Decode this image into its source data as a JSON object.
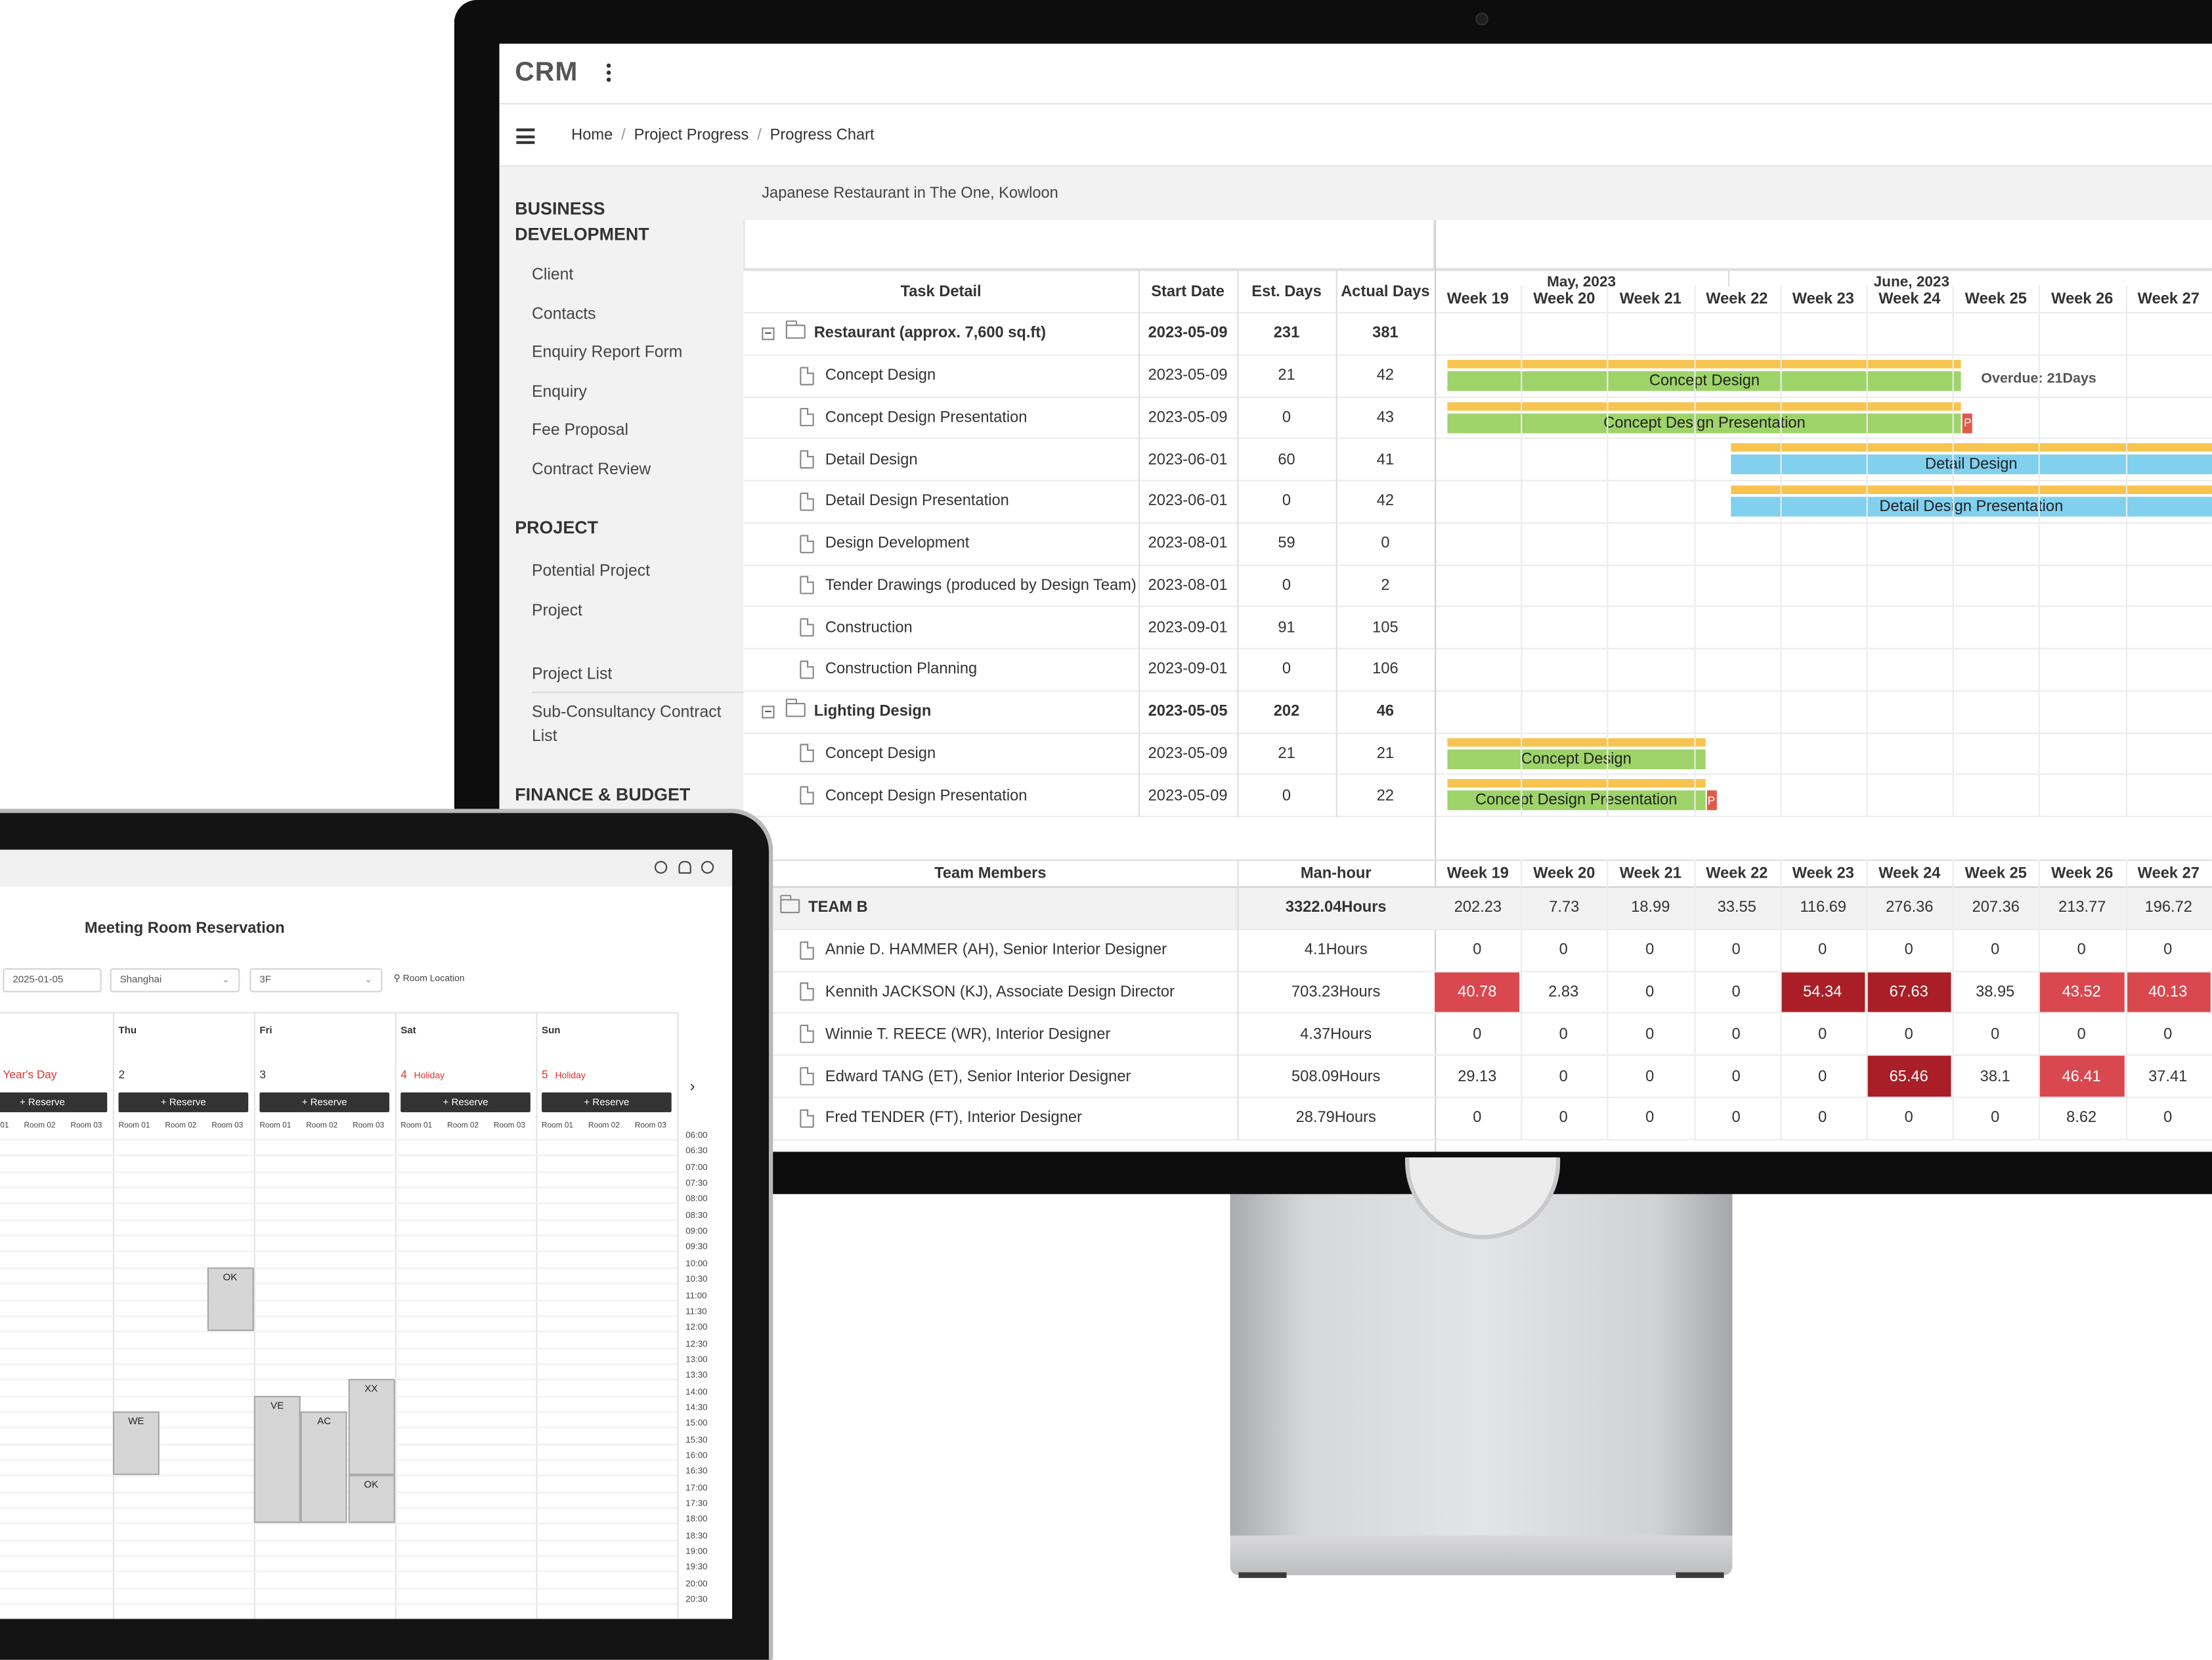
{
  "crm": {
    "logo": "CRM",
    "breadcrumb": [
      "Home",
      "Project Progress",
      "Progress Chart"
    ],
    "sidebar": {
      "sections": [
        {
          "title": "BUSINESS DEVELOPMENT",
          "items": [
            "Client",
            "Contacts",
            "Enquiry Report Form",
            "Enquiry",
            "Fee Proposal",
            "Contract Review"
          ]
        },
        {
          "title": "PROJECT",
          "items": [
            "Potential Project",
            "Project"
          ]
        },
        {
          "title": "",
          "items": [
            "Project List",
            "Sub-Consultancy Contract List"
          ]
        },
        {
          "title": "FINANCE & BUDGET",
          "items": []
        }
      ]
    },
    "project_title": "Japanese Restaurant in The One, Kowloon",
    "task_table": {
      "headers": {
        "task": "Task Detail",
        "start": "Start Date",
        "est": "Est. Days",
        "actual": "Actual Days"
      },
      "months": [
        "May, 2023",
        "June, 2023"
      ],
      "weeks": [
        "Week 19",
        "Week 20",
        "Week 21",
        "Week 22",
        "Week 23",
        "Week 24",
        "Week 25",
        "Week 26",
        "Week 27"
      ],
      "rows": [
        {
          "type": "group",
          "name": "Restaurant (approx. 7,600 sq.ft)",
          "start": "2023-05-09",
          "est": "231",
          "actual": "381"
        },
        {
          "type": "task",
          "name": "Concept Design",
          "start": "2023-05-09",
          "est": "21",
          "actual": "42",
          "bar": {
            "label": "Concept Design",
            "color": "#9ed36a",
            "from_week": 19.15,
            "to_week": 25.1
          },
          "note": "Overdue: 21Days"
        },
        {
          "type": "task",
          "name": "Concept Design Presentation",
          "start": "2023-05-09",
          "est": "0",
          "actual": "43",
          "bar": {
            "label": "Concept Design Presentation",
            "color": "#9ed36a",
            "from_week": 19.15,
            "to_week": 25.1
          },
          "flag": "P"
        },
        {
          "type": "task",
          "name": "Detail Design",
          "start": "2023-06-01",
          "est": "60",
          "actual": "41",
          "bar": {
            "label": "Detail Design",
            "color": "#80d0ee",
            "from_week": 22.43,
            "to_week": 28
          }
        },
        {
          "type": "task",
          "name": "Detail Design Presentation",
          "start": "2023-06-01",
          "est": "0",
          "actual": "42",
          "bar": {
            "label": "Detail Design Presentation",
            "color": "#80d0ee",
            "from_week": 22.43,
            "to_week": 28
          }
        },
        {
          "type": "task",
          "name": "Design Development",
          "start": "2023-08-01",
          "est": "59",
          "actual": "0"
        },
        {
          "type": "task",
          "name": "Tender Drawings (produced by Design Team)",
          "start": "2023-08-01",
          "est": "0",
          "actual": "2"
        },
        {
          "type": "task",
          "name": "Construction",
          "start": "2023-09-01",
          "est": "91",
          "actual": "105"
        },
        {
          "type": "task",
          "name": "Construction Planning",
          "start": "2023-09-01",
          "est": "0",
          "actual": "106"
        },
        {
          "type": "group",
          "name": "Lighting Design",
          "start": "2023-05-05",
          "est": "202",
          "actual": "46"
        },
        {
          "type": "task",
          "name": "Concept Design",
          "start": "2023-05-09",
          "est": "21",
          "actual": "21",
          "bar": {
            "label": "Concept Design",
            "color": "#9ed36a",
            "from_week": 19.15,
            "to_week": 22.13
          }
        },
        {
          "type": "task",
          "name": "Concept Design Presentation",
          "start": "2023-05-09",
          "est": "0",
          "actual": "22",
          "bar": {
            "label": "Concept Design Presentation",
            "color": "#9ed36a",
            "from_week": 19.15,
            "to_week": 22.13
          },
          "flag": "P"
        }
      ],
      "plan_color": "#f6c44f"
    },
    "team_table": {
      "headers": {
        "member": "Team Members",
        "hours": "Man-hour"
      },
      "weeks": [
        "Week 19",
        "Week 20",
        "Week 21",
        "Week 22",
        "Week 23",
        "Week 24",
        "Week 25",
        "Week 26",
        "Week 27"
      ],
      "team": {
        "name": "TEAM B",
        "hours": "3322.04Hours",
        "values": [
          "202.23",
          "7.73",
          "18.99",
          "33.55",
          "116.69",
          "276.36",
          "207.36",
          "213.77",
          "196.72"
        ]
      },
      "members": [
        {
          "name": "Annie D. HAMMER (AH), Senior Interior Designer",
          "hours": "4.1Hours",
          "values": [
            "0",
            "0",
            "0",
            "0",
            "0",
            "0",
            "0",
            "0",
            "0"
          ],
          "levels": [
            0,
            0,
            0,
            0,
            0,
            0,
            0,
            0,
            0
          ]
        },
        {
          "name": "Kennith JACKSON (KJ), Associate Design Director",
          "hours": "703.23Hours",
          "values": [
            "40.78",
            "2.83",
            "0",
            "0",
            "54.34",
            "67.63",
            "38.95",
            "43.52",
            "40.13"
          ],
          "levels": [
            1,
            0,
            0,
            0,
            2,
            2,
            0,
            1,
            1
          ]
        },
        {
          "name": "Winnie T. REECE (WR), Interior Designer",
          "hours": "4.37Hours",
          "values": [
            "0",
            "0",
            "0",
            "0",
            "0",
            "0",
            "0",
            "0",
            "0"
          ],
          "levels": [
            0,
            0,
            0,
            0,
            0,
            0,
            0,
            0,
            0
          ]
        },
        {
          "name": "Edward TANG (ET), Senior Interior Designer",
          "hours": "508.09Hours",
          "values": [
            "29.13",
            "0",
            "0",
            "0",
            "0",
            "65.46",
            "38.1",
            "46.41",
            "37.41"
          ],
          "levels": [
            0,
            0,
            0,
            0,
            0,
            2,
            0,
            1,
            0
          ]
        },
        {
          "name": "Fred TENDER (FT), Interior Designer",
          "hours": "28.79Hours",
          "values": [
            "0",
            "0",
            "0",
            "0",
            "0",
            "0",
            "0",
            "8.62",
            "0"
          ],
          "levels": [
            0,
            0,
            0,
            0,
            0,
            0,
            0,
            0,
            0
          ]
        }
      ],
      "heat_colors": {
        "1": "#d9484f",
        "2": "#a91e27"
      }
    }
  },
  "tablet": {
    "title": "Meeting Room Reservation",
    "filters": {
      "date": "2025-01-05",
      "city": "Shanghai",
      "floor": "3F",
      "location": "Room Location"
    },
    "days": [
      {
        "name": "",
        "date": "New Year's Day",
        "red": true
      },
      {
        "name": "Thu",
        "date": "2",
        "red": false
      },
      {
        "name": "Fri",
        "date": "3",
        "red": false
      },
      {
        "name": "Sat",
        "date": "4",
        "note": "Holiday",
        "red": true
      },
      {
        "name": "Sun",
        "date": "5",
        "note": "Holiday",
        "red": true
      }
    ],
    "reserve_label": "+ Reserve",
    "rooms": [
      "Room 01",
      "Room 02",
      "Room 03"
    ],
    "times": [
      "06:00",
      "06:30",
      "07:00",
      "07:30",
      "08:00",
      "08:30",
      "09:00",
      "09:30",
      "10:00",
      "10:30",
      "11:00",
      "11:30",
      "12:00",
      "12:30",
      "13:00",
      "13:30",
      "14:00",
      "14:30",
      "15:00",
      "15:30",
      "16:00",
      "16:30",
      "17:00",
      "17:30",
      "18:00",
      "18:30",
      "19:00",
      "19:30",
      "20:00",
      "20:30"
    ],
    "bookings": [
      {
        "label": "OK",
        "day": 1,
        "room": 2,
        "start": "10:00",
        "end": "12:00"
      },
      {
        "label": "WE",
        "day": 1,
        "room": 0,
        "start": "14:30",
        "end": "16:30"
      },
      {
        "label": "VE",
        "day": 2,
        "room": 0,
        "start": "14:00",
        "end": "18:00"
      },
      {
        "label": "AC",
        "day": 2,
        "room": 1,
        "start": "14:30",
        "end": "18:00"
      },
      {
        "label": "XX",
        "day": 2,
        "room": 2,
        "start": "13:30",
        "end": "16:30"
      },
      {
        "label": "OK",
        "day": 2,
        "room": 2,
        "start": "16:30",
        "end": "18:00"
      }
    ]
  }
}
